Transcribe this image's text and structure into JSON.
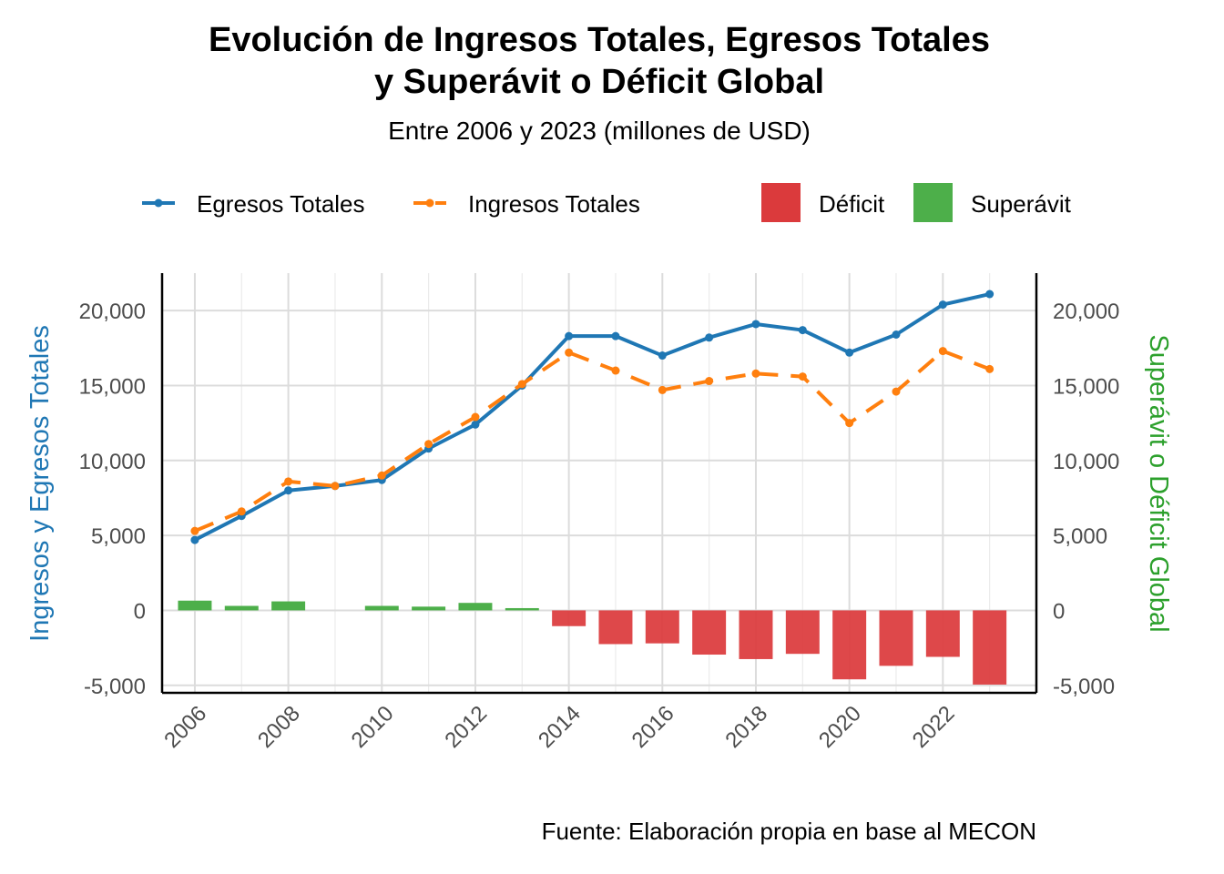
{
  "chart_data": {
    "type": "line",
    "title_line1": "Evolución de Ingresos Totales, Egresos Totales",
    "title_line2": "y Superávit o Déficit Global",
    "subtitle": "Entre 2006 y 2023 (millones de USD)",
    "caption": "Fuente: Elaboración propia en base al MECON",
    "ylabel_left": "Ingresos y Egresos Totales",
    "ylabel_right": "Superávit o Déficit Global",
    "ylim": [
      -5500,
      22500
    ],
    "yticks": [
      -5000,
      0,
      5000,
      10000,
      15000,
      20000
    ],
    "ytick_labels": [
      "-5,000",
      "0",
      "5,000",
      "10,000",
      "15,000",
      "20,000"
    ],
    "xticks": [
      2006,
      2008,
      2010,
      2012,
      2014,
      2016,
      2018,
      2020,
      2022
    ],
    "xtick_labels": [
      "2006",
      "2008",
      "2010",
      "2012",
      "2014",
      "2016",
      "2018",
      "2020",
      "2022"
    ],
    "x": [
      2006,
      2007,
      2008,
      2009,
      2010,
      2011,
      2012,
      2013,
      2014,
      2015,
      2016,
      2017,
      2018,
      2019,
      2020,
      2021,
      2022,
      2023
    ],
    "series": [
      {
        "name": "Egresos Totales",
        "style": "solid",
        "color": "#1f77b4",
        "values": [
          4700,
          6300,
          8000,
          8300,
          8700,
          10800,
          12400,
          15000,
          18300,
          18300,
          17000,
          18200,
          19100,
          18700,
          17200,
          18400,
          20400,
          21100
        ]
      },
      {
        "name": "Ingresos Totales",
        "style": "dashed",
        "color": "#ff7f0e",
        "values": [
          5300,
          6600,
          8600,
          8300,
          9000,
          11100,
          12900,
          15100,
          17200,
          16000,
          14700,
          15300,
          15800,
          15600,
          12500,
          14600,
          17300,
          16100
        ]
      }
    ],
    "balance": {
      "values": [
        650,
        300,
        600,
        0,
        300,
        250,
        500,
        150,
        -1050,
        -2250,
        -2200,
        -2950,
        -3250,
        -2900,
        -4600,
        -3700,
        -3100,
        -4950
      ],
      "positive_label": "Superávit",
      "negative_label": "Déficit",
      "positive_color": "#4daf4a",
      "negative_color": "#db3a3c"
    },
    "legend": [
      "Egresos Totales",
      "Ingresos Totales",
      "Déficit",
      "Superávit"
    ],
    "legend_position": "top",
    "grid": true,
    "left_axis_color": "#1f77b4",
    "right_axis_color": "#2ca02c"
  }
}
